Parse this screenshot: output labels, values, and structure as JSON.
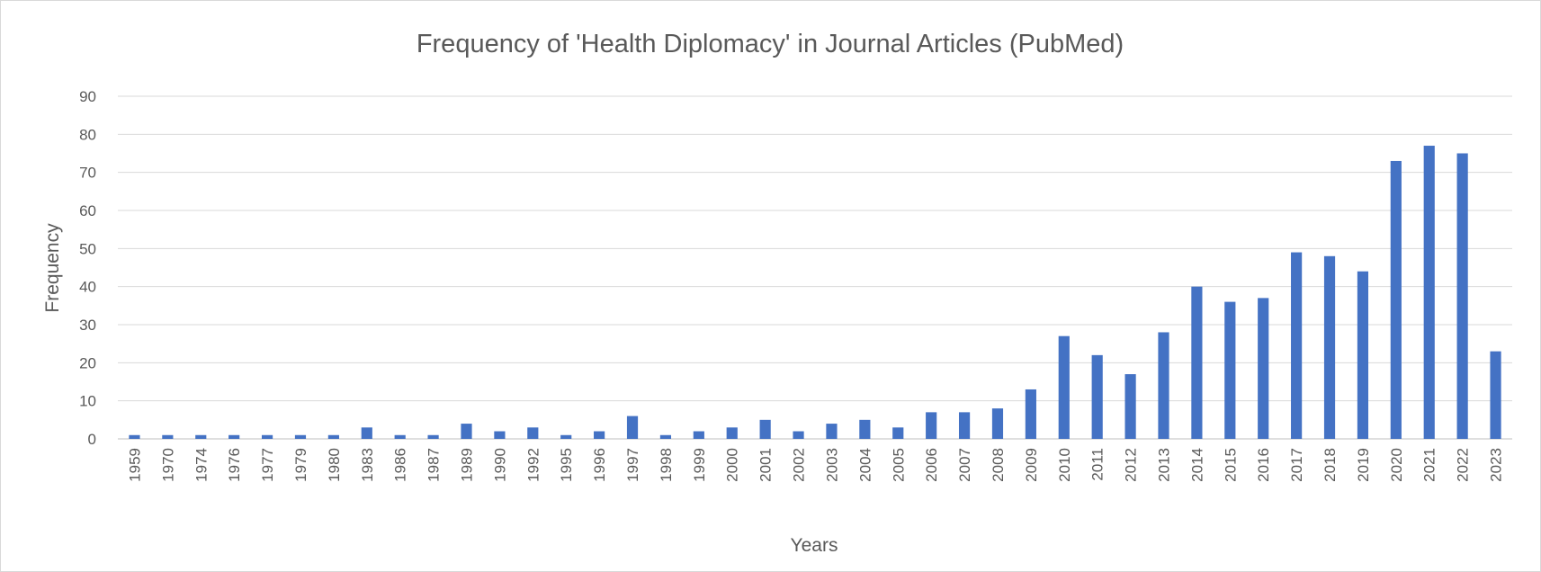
{
  "chart_data": {
    "type": "bar",
    "title": "Frequency of 'Health Diplomacy' in Journal Articles (PubMed)",
    "xlabel": "Years",
    "ylabel": "Frequency",
    "ylim": [
      0,
      90
    ],
    "yticks": [
      0,
      10,
      20,
      30,
      40,
      50,
      60,
      70,
      80,
      90
    ],
    "grid": true,
    "legend": "none",
    "bar_color": "#4472C4",
    "categories": [
      "1959",
      "1970",
      "1974",
      "1976",
      "1977",
      "1979",
      "1980",
      "1983",
      "1986",
      "1987",
      "1989",
      "1990",
      "1992",
      "1995",
      "1996",
      "1997",
      "1998",
      "1999",
      "2000",
      "2001",
      "2002",
      "2003",
      "2004",
      "2005",
      "2006",
      "2007",
      "2008",
      "2009",
      "2010",
      "2011",
      "2012",
      "2013",
      "2014",
      "2015",
      "2016",
      "2017",
      "2018",
      "2019",
      "2020",
      "2021",
      "2022",
      "2023"
    ],
    "values": [
      1,
      1,
      1,
      1,
      1,
      1,
      1,
      3,
      1,
      1,
      4,
      2,
      3,
      1,
      2,
      6,
      1,
      2,
      3,
      5,
      2,
      4,
      5,
      3,
      7,
      7,
      8,
      13,
      27,
      22,
      17,
      28,
      40,
      36,
      37,
      49,
      48,
      44,
      73,
      77,
      75,
      23
    ]
  }
}
